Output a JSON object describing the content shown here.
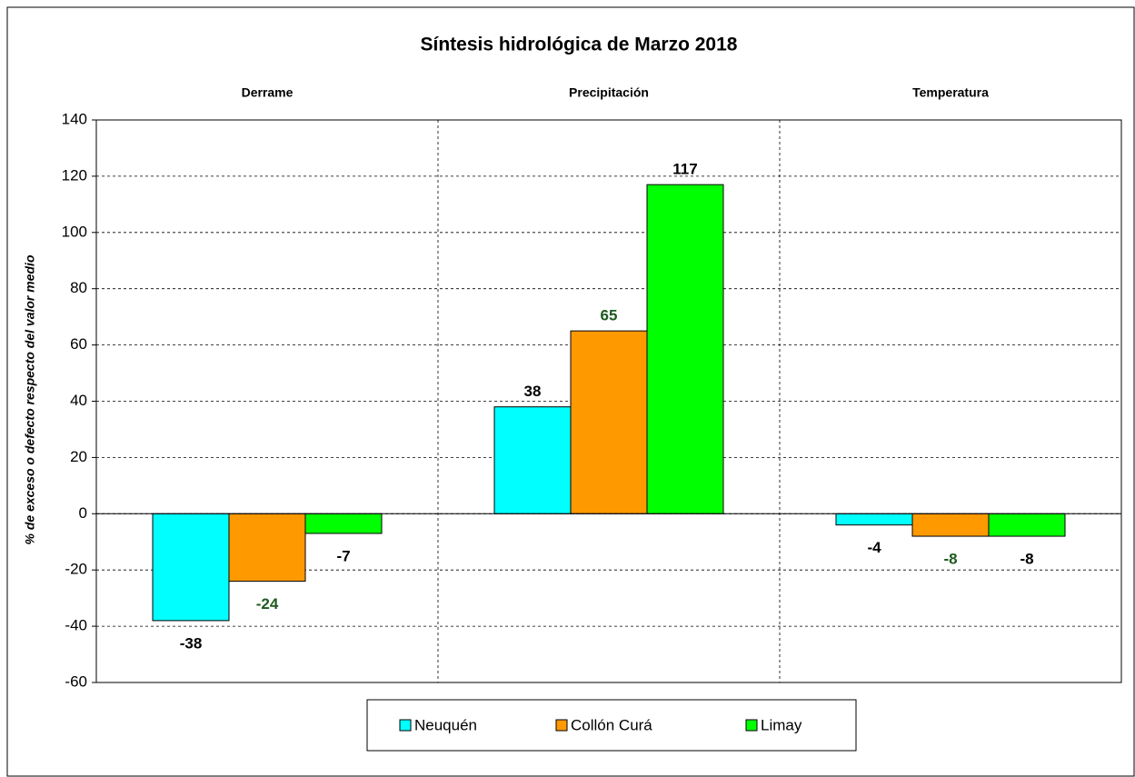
{
  "chart_data": {
    "type": "bar",
    "title": "Síntesis hidrológica de Marzo 2018",
    "y_label": "% de exceso o defecto respecto del valor medio",
    "categories": [
      "Derrame",
      "Precipitación",
      "Temperatura"
    ],
    "series": [
      {
        "name": "Neuquén",
        "color": "#00ffff",
        "label_color": "#000000",
        "values": [
          -38,
          38,
          -4
        ]
      },
      {
        "name": "Collón Curá",
        "color": "#ff9900",
        "label_color": "#1e5a1e",
        "values": [
          -24,
          65,
          -8
        ]
      },
      {
        "name": "Limay",
        "color": "#00ff00",
        "label_color": "#000000",
        "values": [
          -7,
          117,
          -8
        ]
      }
    ],
    "ylim": [
      -60,
      140
    ],
    "yticks": [
      -60,
      -40,
      -20,
      0,
      20,
      40,
      60,
      80,
      100,
      120,
      140
    ],
    "grid": true,
    "legend": "bottom"
  }
}
